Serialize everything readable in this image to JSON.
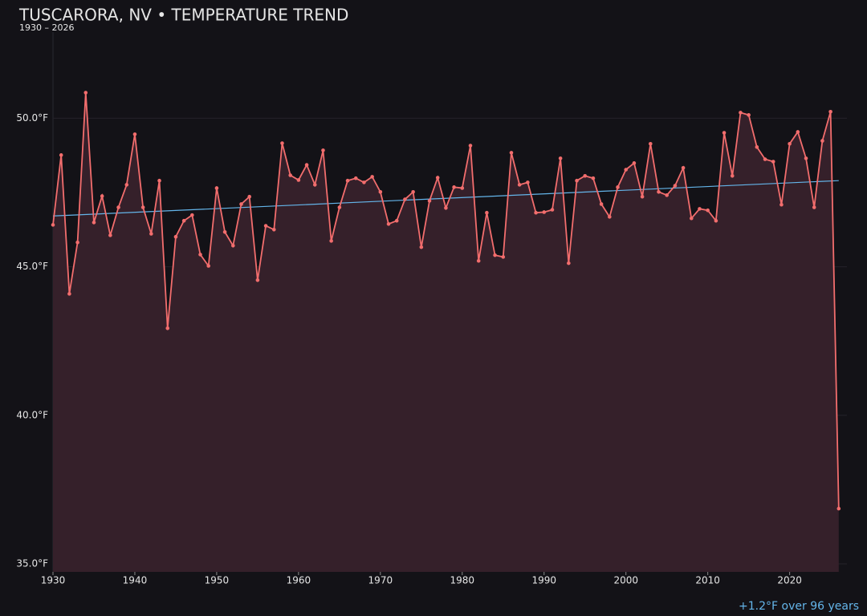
{
  "chart_data": {
    "type": "line",
    "title": "TUSCARORA, NV • TEMPERATURE TREND",
    "subtitle": "1930 – 2026",
    "annotation": "+1.2°F over 96 years",
    "x": [
      1930,
      1931,
      1932,
      1933,
      1934,
      1935,
      1936,
      1937,
      1938,
      1939,
      1940,
      1941,
      1942,
      1943,
      1944,
      1945,
      1946,
      1947,
      1948,
      1949,
      1950,
      1951,
      1952,
      1953,
      1954,
      1955,
      1956,
      1957,
      1958,
      1959,
      1960,
      1961,
      1962,
      1963,
      1964,
      1965,
      1966,
      1967,
      1968,
      1969,
      1970,
      1971,
      1972,
      1973,
      1974,
      1975,
      1976,
      1977,
      1978,
      1979,
      1980,
      1981,
      1982,
      1983,
      1984,
      1985,
      1986,
      1987,
      1988,
      1989,
      1990,
      1991,
      1992,
      1993,
      1994,
      1995,
      1996,
      1997,
      1998,
      1999,
      2000,
      2001,
      2002,
      2003,
      2004,
      2005,
      2006,
      2007,
      2008,
      2009,
      2010,
      2011,
      2012,
      2013,
      2014,
      2015,
      2016,
      2017,
      2018,
      2019,
      2020,
      2021,
      2022,
      2023,
      2024,
      2025,
      2026
    ],
    "series": [
      {
        "color": "#f26d6d",
        "fill": "#35202a",
        "values": [
          46.41,
          48.76,
          44.09,
          45.82,
          50.86,
          46.49,
          47.38,
          46.06,
          47.0,
          47.76,
          49.46,
          47.0,
          46.11,
          47.9,
          42.93,
          46.01,
          46.55,
          46.74,
          45.41,
          45.03,
          47.65,
          46.17,
          45.71,
          47.11,
          47.36,
          44.55,
          46.38,
          46.25,
          49.16,
          48.08,
          47.92,
          48.43,
          47.76,
          48.92,
          45.87,
          47.0,
          47.9,
          47.98,
          47.84,
          48.03,
          47.52,
          46.44,
          46.55,
          47.27,
          47.52,
          45.66,
          47.22,
          48.0,
          46.98,
          47.68,
          47.65,
          49.08,
          45.2,
          46.82,
          45.39,
          45.33,
          48.84,
          47.76,
          47.84,
          46.82,
          46.84,
          46.92,
          48.65,
          45.12,
          47.9,
          48.06,
          47.98,
          47.11,
          46.68,
          47.68,
          48.27,
          48.49,
          47.36,
          49.14,
          47.52,
          47.41,
          47.73,
          48.33,
          46.63,
          46.95,
          46.9,
          46.55,
          49.51,
          48.06,
          50.19,
          50.11,
          49.03,
          48.62,
          48.54,
          47.09,
          49.14,
          49.54,
          48.65,
          47.0,
          49.24,
          50.22,
          36.86
        ]
      }
    ],
    "trend": {
      "color": "#64b5ea",
      "x": [
        1930,
        2026
      ],
      "values": [
        46.71,
        47.9
      ]
    },
    "xlim": [
      1930,
      2027
    ],
    "ylim": [
      34.73,
      52.9
    ],
    "xticks": [
      1930,
      1940,
      1950,
      1960,
      1970,
      1980,
      1990,
      2000,
      2010,
      2020
    ],
    "yticks": [
      {
        "value": 35,
        "label": "35.0°F"
      },
      {
        "value": 40,
        "label": "40.0°F"
      },
      {
        "value": 45,
        "label": "45.0°F"
      },
      {
        "value": 50,
        "label": "50.0°F"
      }
    ],
    "grid": true
  }
}
